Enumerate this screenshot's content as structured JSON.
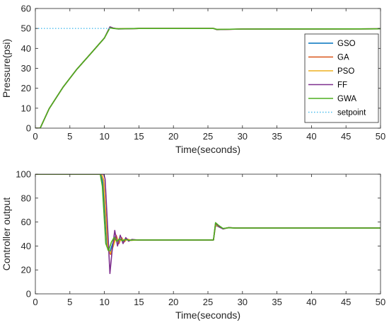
{
  "chart_data": [
    {
      "type": "line",
      "xlabel": "Time(seconds)",
      "ylabel": "Pressure(psi)",
      "xlim": [
        0,
        50
      ],
      "ylim": [
        0,
        60
      ],
      "xticks": [
        0,
        5,
        10,
        15,
        20,
        25,
        30,
        35,
        40,
        45,
        50
      ],
      "yticks": [
        0,
        10,
        20,
        30,
        40,
        50,
        60
      ],
      "grid": false,
      "legend_position": "right",
      "series": [
        {
          "name": "GSO",
          "color": "#0072BD",
          "style": "solid",
          "x": [
            0,
            0.7,
            2,
            4,
            6,
            8,
            10,
            10.8,
            11.3,
            12,
            15,
            25.8,
            26.3,
            30,
            50
          ],
          "y": [
            0,
            0,
            9.8,
            20.5,
            29.5,
            37.3,
            45.2,
            50.5,
            50.1,
            49.8,
            50,
            50,
            49.5,
            49.7,
            49.8
          ]
        },
        {
          "name": "GA",
          "color": "#D95319",
          "style": "solid",
          "x": [
            0,
            0.7,
            2,
            4,
            6,
            8,
            10,
            10.8,
            11.3,
            12,
            15,
            25.8,
            26.3,
            30,
            50
          ],
          "y": [
            0,
            0,
            9.8,
            20.5,
            29.5,
            37.3,
            45.2,
            50.6,
            50.1,
            49.8,
            50,
            50,
            49.4,
            49.7,
            49.8
          ]
        },
        {
          "name": "PSO",
          "color": "#EDB120",
          "style": "solid",
          "x": [
            0,
            0.7,
            2,
            4,
            6,
            8,
            10,
            10.8,
            11.3,
            12,
            15,
            25.8,
            26.3,
            30,
            50
          ],
          "y": [
            0,
            0,
            9.8,
            20.5,
            29.5,
            37.3,
            45.2,
            50.4,
            50.1,
            49.8,
            50,
            50,
            49.5,
            49.7,
            49.8
          ]
        },
        {
          "name": "FF",
          "color": "#7E2F8E",
          "style": "solid",
          "x": [
            0,
            0.7,
            2,
            4,
            6,
            8,
            10,
            10.8,
            11.3,
            12,
            15,
            25.8,
            26.3,
            30,
            50
          ],
          "y": [
            0,
            0,
            9.8,
            20.5,
            29.5,
            37.3,
            45.2,
            50.8,
            50.2,
            49.7,
            50,
            50,
            49.4,
            49.7,
            49.8
          ]
        },
        {
          "name": "GWA",
          "color": "#4DAF1E",
          "style": "solid",
          "x": [
            0,
            0.7,
            2,
            4,
            6,
            8,
            10,
            10.8,
            11.3,
            12,
            15,
            25.8,
            26.3,
            30,
            50
          ],
          "y": [
            0,
            0,
            9.8,
            20.5,
            29.5,
            37.3,
            45.2,
            50.3,
            50.0,
            49.8,
            50,
            50,
            49.5,
            49.7,
            49.8
          ]
        },
        {
          "name": "setpoint",
          "color": "#4DBEEE",
          "style": "dotted",
          "x": [
            0,
            11
          ],
          "y": [
            50,
            50
          ]
        }
      ]
    },
    {
      "type": "line",
      "xlabel": "Time(seconds)",
      "ylabel": "Controller output",
      "xlim": [
        0,
        50
      ],
      "ylim": [
        0,
        100
      ],
      "xticks": [
        0,
        5,
        10,
        15,
        20,
        25,
        30,
        35,
        40,
        45,
        50
      ],
      "yticks": [
        0,
        20,
        40,
        60,
        80,
        100
      ],
      "grid": false,
      "series": [
        {
          "name": "GSO",
          "color": "#0072BD",
          "style": "solid",
          "x": [
            0,
            9.5,
            9.8,
            10.4,
            10.8,
            11.2,
            11.6,
            12.0,
            12.4,
            12.8,
            13.2,
            13.8,
            14.5,
            25.8,
            26.1,
            26.6,
            27.2,
            28,
            29,
            50
          ],
          "y": [
            100,
            100,
            92,
            40,
            35,
            42,
            48,
            43,
            46,
            44,
            45.5,
            44.8,
            45,
            45,
            57,
            56,
            54.5,
            55.3,
            55,
            55
          ]
        },
        {
          "name": "GA",
          "color": "#D95319",
          "style": "solid",
          "x": [
            0,
            9.6,
            9.9,
            10.5,
            10.9,
            11.3,
            11.7,
            12.1,
            12.5,
            12.9,
            13.3,
            13.9,
            14.6,
            25.8,
            26.1,
            26.6,
            27.2,
            28,
            29,
            50
          ],
          "y": [
            100,
            100,
            95,
            37,
            33,
            41,
            49,
            42,
            47,
            43.5,
            45.8,
            44.7,
            45,
            45,
            58,
            56.5,
            54.3,
            55.4,
            55,
            55
          ]
        },
        {
          "name": "PSO",
          "color": "#EDB120",
          "style": "solid",
          "x": [
            0,
            9.6,
            9.9,
            10.5,
            10.9,
            11.3,
            11.7,
            12.1,
            12.5,
            12.9,
            13.3,
            13.9,
            14.6,
            25.8,
            26.1,
            26.6,
            27.2,
            28,
            29,
            50
          ],
          "y": [
            100,
            100,
            94,
            38,
            34,
            40,
            47,
            43,
            46.5,
            44,
            45.5,
            44.8,
            45,
            45,
            57.5,
            56,
            54.5,
            55.3,
            55,
            55
          ]
        },
        {
          "name": "FF",
          "color": "#7E2F8E",
          "style": "solid",
          "x": [
            0,
            9.9,
            10.1,
            10.5,
            10.8,
            11.1,
            11.5,
            11.9,
            12.3,
            12.7,
            13.1,
            13.5,
            14.0,
            14.8,
            25.8,
            26.1,
            26.6,
            27.2,
            28,
            29,
            50
          ],
          "y": [
            100,
            100,
            96,
            52,
            17,
            35,
            53,
            40,
            49,
            42,
            47,
            44,
            45.5,
            45,
            45,
            59,
            56,
            54.2,
            55.4,
            55,
            55
          ]
        },
        {
          "name": "GWA",
          "color": "#4DAF1E",
          "style": "solid",
          "x": [
            0,
            9.4,
            9.7,
            10.2,
            10.6,
            11.0,
            11.4,
            11.8,
            12.2,
            12.6,
            13.0,
            13.6,
            14.3,
            25.8,
            26.1,
            26.6,
            27.2,
            28,
            29,
            50
          ],
          "y": [
            100,
            100,
            90,
            42,
            36,
            43,
            47,
            44,
            46,
            44.3,
            45.4,
            44.8,
            45,
            45,
            59.5,
            57,
            54.6,
            55.2,
            55,
            55
          ]
        }
      ]
    }
  ]
}
